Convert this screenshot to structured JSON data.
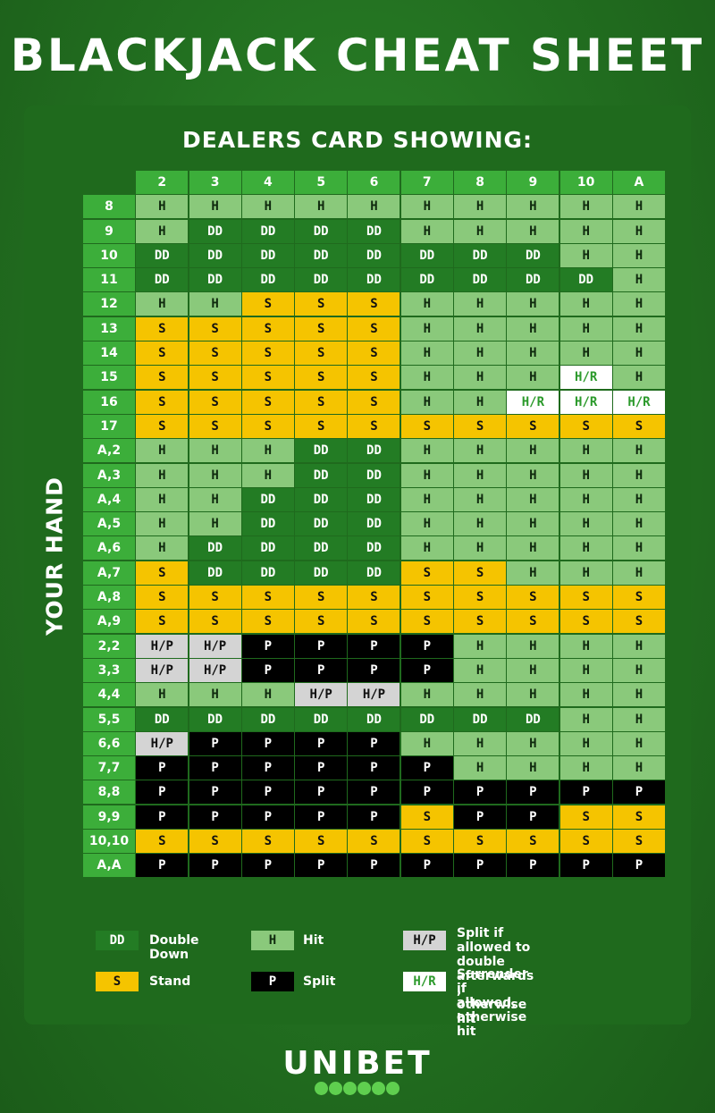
{
  "title": "BLACKJACK CHEAT SHEET",
  "dealer_label": "DEALERS CARD SHOWING:",
  "hand_label": "YOUR HAND",
  "dealer_cards": [
    "2",
    "3",
    "4",
    "5",
    "6",
    "7",
    "8",
    "9",
    "10",
    "A"
  ],
  "rows": [
    {
      "hand": "8",
      "cells": [
        "H",
        "H",
        "H",
        "H",
        "H",
        "H",
        "H",
        "H",
        "H",
        "H"
      ]
    },
    {
      "hand": "9",
      "cells": [
        "H",
        "DD",
        "DD",
        "DD",
        "DD",
        "H",
        "H",
        "H",
        "H",
        "H"
      ]
    },
    {
      "hand": "10",
      "cells": [
        "DD",
        "DD",
        "DD",
        "DD",
        "DD",
        "DD",
        "DD",
        "DD",
        "H",
        "H"
      ]
    },
    {
      "hand": "11",
      "cells": [
        "DD",
        "DD",
        "DD",
        "DD",
        "DD",
        "DD",
        "DD",
        "DD",
        "DD",
        "H"
      ]
    },
    {
      "hand": "12",
      "cells": [
        "H",
        "H",
        "S",
        "S",
        "S",
        "H",
        "H",
        "H",
        "H",
        "H"
      ]
    },
    {
      "hand": "13",
      "cells": [
        "S",
        "S",
        "S",
        "S",
        "S",
        "H",
        "H",
        "H",
        "H",
        "H"
      ]
    },
    {
      "hand": "14",
      "cells": [
        "S",
        "S",
        "S",
        "S",
        "S",
        "H",
        "H",
        "H",
        "H",
        "H"
      ]
    },
    {
      "hand": "15",
      "cells": [
        "S",
        "S",
        "S",
        "S",
        "S",
        "H",
        "H",
        "H",
        "H/R",
        "H"
      ]
    },
    {
      "hand": "16",
      "cells": [
        "S",
        "S",
        "S",
        "S",
        "S",
        "H",
        "H",
        "H/R",
        "H/R",
        "H/R"
      ]
    },
    {
      "hand": "17",
      "cells": [
        "S",
        "S",
        "S",
        "S",
        "S",
        "S",
        "S",
        "S",
        "S",
        "S"
      ]
    },
    {
      "hand": "A,2",
      "cells": [
        "H",
        "H",
        "H",
        "DD",
        "DD",
        "H",
        "H",
        "H",
        "H",
        "H"
      ]
    },
    {
      "hand": "A,3",
      "cells": [
        "H",
        "H",
        "H",
        "DD",
        "DD",
        "H",
        "H",
        "H",
        "H",
        "H"
      ]
    },
    {
      "hand": "A,4",
      "cells": [
        "H",
        "H",
        "DD",
        "DD",
        "DD",
        "H",
        "H",
        "H",
        "H",
        "H"
      ]
    },
    {
      "hand": "A,5",
      "cells": [
        "H",
        "H",
        "DD",
        "DD",
        "DD",
        "H",
        "H",
        "H",
        "H",
        "H"
      ]
    },
    {
      "hand": "A,6",
      "cells": [
        "H",
        "DD",
        "DD",
        "DD",
        "DD",
        "H",
        "H",
        "H",
        "H",
        "H"
      ]
    },
    {
      "hand": "A,7",
      "cells": [
        "S",
        "DD",
        "DD",
        "DD",
        "DD",
        "S",
        "S",
        "H",
        "H",
        "H"
      ]
    },
    {
      "hand": "A,8",
      "cells": [
        "S",
        "S",
        "S",
        "S",
        "S",
        "S",
        "S",
        "S",
        "S",
        "S"
      ]
    },
    {
      "hand": "A,9",
      "cells": [
        "S",
        "S",
        "S",
        "S",
        "S",
        "S",
        "S",
        "S",
        "S",
        "S"
      ]
    },
    {
      "hand": "2,2",
      "cells": [
        "H/P",
        "H/P",
        "P",
        "P",
        "P",
        "P",
        "H",
        "H",
        "H",
        "H"
      ]
    },
    {
      "hand": "3,3",
      "cells": [
        "H/P",
        "H/P",
        "P",
        "P",
        "P",
        "P",
        "H",
        "H",
        "H",
        "H"
      ]
    },
    {
      "hand": "4,4",
      "cells": [
        "H",
        "H",
        "H",
        "H/P",
        "H/P",
        "H",
        "H",
        "H",
        "H",
        "H"
      ]
    },
    {
      "hand": "5,5",
      "cells": [
        "DD",
        "DD",
        "DD",
        "DD",
        "DD",
        "DD",
        "DD",
        "DD",
        "H",
        "H"
      ]
    },
    {
      "hand": "6,6",
      "cells": [
        "H/P",
        "P",
        "P",
        "P",
        "P",
        "H",
        "H",
        "H",
        "H",
        "H"
      ]
    },
    {
      "hand": "7,7",
      "cells": [
        "P",
        "P",
        "P",
        "P",
        "P",
        "P",
        "H",
        "H",
        "H",
        "H"
      ]
    },
    {
      "hand": "8,8",
      "cells": [
        "P",
        "P",
        "P",
        "P",
        "P",
        "P",
        "P",
        "P",
        "P",
        "P"
      ]
    },
    {
      "hand": "9,9",
      "cells": [
        "P",
        "P",
        "P",
        "P",
        "P",
        "S",
        "P",
        "P",
        "S",
        "S"
      ]
    },
    {
      "hand": "10,10",
      "cells": [
        "S",
        "S",
        "S",
        "S",
        "S",
        "S",
        "S",
        "S",
        "S",
        "S"
      ]
    },
    {
      "hand": "A,A",
      "cells": [
        "P",
        "P",
        "P",
        "P",
        "P",
        "P",
        "P",
        "P",
        "P",
        "P"
      ]
    }
  ],
  "legend": {
    "dd": {
      "code": "DD",
      "label": "Double Down"
    },
    "h": {
      "code": "H",
      "label": "Hit"
    },
    "hp": {
      "code": "H/P",
      "line1": "Split if allowed to double",
      "line2": "afterwards , otherwise hit"
    },
    "s": {
      "code": "S",
      "label": "Stand"
    },
    "p": {
      "code": "P",
      "label": "Split"
    },
    "hr": {
      "code": "H/R",
      "line1": "Surrender if allowed,",
      "line2": "otherwise hit"
    }
  },
  "brand": "UNIBET",
  "colors": {
    "hit": "#8ac97b",
    "double_down": "#237c24",
    "stand": "#f5c400",
    "split": "#000000",
    "hit_split": "#d4d4d4",
    "hit_surrender": "#ffffff",
    "header": "#3cae3a"
  }
}
